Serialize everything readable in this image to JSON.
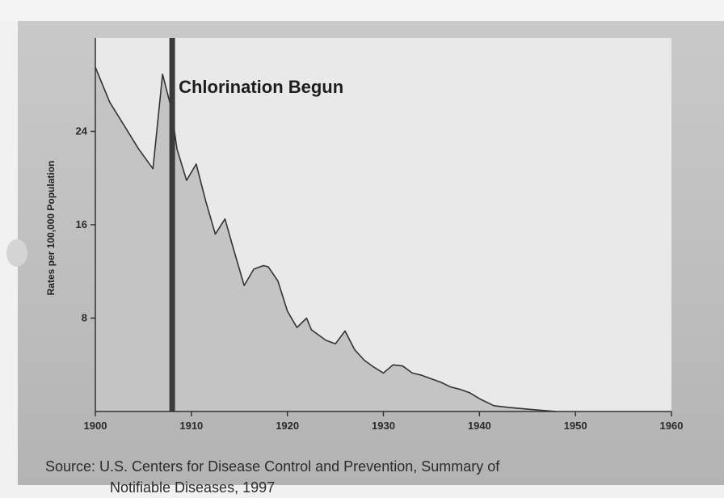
{
  "chart_data": {
    "type": "area",
    "title": "",
    "xlabel": "",
    "ylabel": "Rates per 100,000 Population",
    "xlim": [
      1900,
      1960
    ],
    "ylim": [
      0,
      32
    ],
    "x_ticks": [
      "1900",
      "1910",
      "1920",
      "1930",
      "1940",
      "1950",
      "1960"
    ],
    "y_ticks": [
      "8",
      "16",
      "24"
    ],
    "grid": false,
    "series": [
      {
        "x": [
          1900,
          1901.5,
          1903,
          1904.5,
          1906,
          1907,
          1907.9,
          1908.5,
          1909.5,
          1910.5,
          1911.5,
          1912.5,
          1913.5,
          1914.5,
          1915.5,
          1916.5,
          1917.5,
          1918,
          1919,
          1920,
          1921,
          1922,
          1922.5,
          1924,
          1925,
          1926,
          1927,
          1928,
          1929,
          1930,
          1931,
          1932,
          1933,
          1934,
          1935,
          1936,
          1937,
          1938,
          1939,
          1940,
          1941.5,
          1943,
          1945,
          1948
        ],
        "values": [
          29.5,
          26.5,
          24.5,
          22.5,
          20.8,
          28.9,
          26,
          22.5,
          19.8,
          21.2,
          18,
          15.2,
          16.5,
          13.6,
          10.8,
          12.2,
          12.5,
          12.4,
          11.2,
          8.6,
          7.2,
          8,
          7,
          6.1,
          5.8,
          6.9,
          5.3,
          4.4,
          3.8,
          3.3,
          4,
          3.9,
          3.3,
          3.1,
          2.8,
          2.5,
          2.1,
          1.9,
          1.6,
          1.1,
          0.5,
          0.35,
          0.2,
          0
        ]
      }
    ],
    "annotations": [
      {
        "text": "Chlorination Begun",
        "x": 1908
      }
    ]
  },
  "source": {
    "line1": "Source: U.S. Centers for Disease Control and Prevention, Summary of",
    "line2": "Notifiable Diseases, 1997"
  },
  "colors": {
    "plot_background": "#e9e9e9",
    "area_fill": "#c4c4c4",
    "line": "#333333",
    "marker_bar": "#3a3a3a"
  }
}
